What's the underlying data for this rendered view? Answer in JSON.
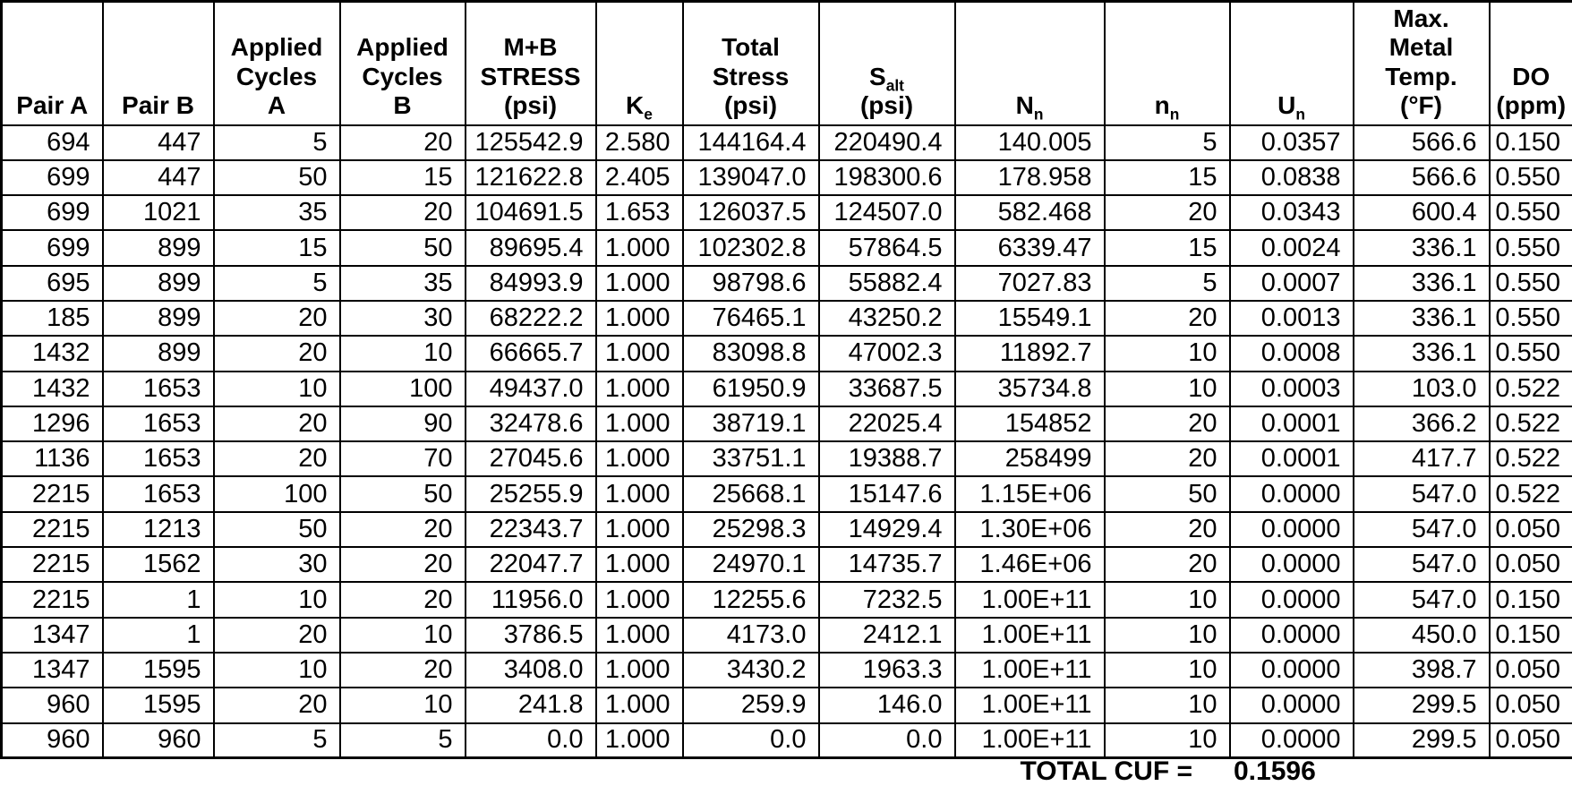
{
  "table": {
    "title": "fatigue-usage-table",
    "columns": [
      {
        "id": "pair-a",
        "label_lines": [
          [
            "Pair A"
          ]
        ]
      },
      {
        "id": "pair-b",
        "label_lines": [
          [
            "Pair B"
          ]
        ]
      },
      {
        "id": "applied-cycles-a",
        "label_lines": [
          [
            "Applied"
          ],
          [
            "Cycles"
          ],
          [
            "A"
          ]
        ]
      },
      {
        "id": "applied-cycles-b",
        "label_lines": [
          [
            "Applied"
          ],
          [
            "Cycles"
          ],
          [
            "B"
          ]
        ]
      },
      {
        "id": "mb-stress",
        "label_lines": [
          [
            "M+B"
          ],
          [
            "STRESS"
          ],
          [
            "(psi)"
          ]
        ]
      },
      {
        "id": "ke",
        "label_lines": [
          [
            {
              "t": "K"
            },
            {
              "t": "e",
              "sub": true
            }
          ]
        ]
      },
      {
        "id": "total-stress",
        "label_lines": [
          [
            "Total"
          ],
          [
            "Stress"
          ],
          [
            "(psi)"
          ]
        ]
      },
      {
        "id": "s-alt",
        "label_lines": [
          [
            {
              "t": "S"
            },
            {
              "t": "alt",
              "sub": true
            }
          ],
          [
            "(psi)"
          ]
        ]
      },
      {
        "id": "n-allowable",
        "label_lines": [
          [
            {
              "t": "N"
            },
            {
              "t": "n",
              "sub": true
            }
          ]
        ]
      },
      {
        "id": "n-applied",
        "label_lines": [
          [
            {
              "t": "n"
            },
            {
              "t": "n",
              "sub": true
            }
          ]
        ]
      },
      {
        "id": "u-n",
        "label_lines": [
          [
            {
              "t": "U"
            },
            {
              "t": "n",
              "sub": true
            }
          ]
        ]
      },
      {
        "id": "max-metal-temp",
        "label_lines": [
          [
            "Max."
          ],
          [
            "Metal"
          ],
          [
            "Temp."
          ],
          [
            "(°F)"
          ]
        ]
      },
      {
        "id": "do-ppm",
        "label_lines": [
          [
            "DO"
          ],
          [
            "(ppm)"
          ]
        ]
      }
    ],
    "rows": [
      [
        "694",
        "447",
        "5",
        "20",
        "125542.9",
        "2.580",
        "144164.4",
        "220490.4",
        "140.005",
        "5",
        "0.0357",
        "566.6",
        "0.150"
      ],
      [
        "699",
        "447",
        "50",
        "15",
        "121622.8",
        "2.405",
        "139047.0",
        "198300.6",
        "178.958",
        "15",
        "0.0838",
        "566.6",
        "0.550"
      ],
      [
        "699",
        "1021",
        "35",
        "20",
        "104691.5",
        "1.653",
        "126037.5",
        "124507.0",
        "582.468",
        "20",
        "0.0343",
        "600.4",
        "0.550"
      ],
      [
        "699",
        "899",
        "15",
        "50",
        "89695.4",
        "1.000",
        "102302.8",
        "57864.5",
        "6339.47",
        "15",
        "0.0024",
        "336.1",
        "0.550"
      ],
      [
        "695",
        "899",
        "5",
        "35",
        "84993.9",
        "1.000",
        "98798.6",
        "55882.4",
        "7027.83",
        "5",
        "0.0007",
        "336.1",
        "0.550"
      ],
      [
        "185",
        "899",
        "20",
        "30",
        "68222.2",
        "1.000",
        "76465.1",
        "43250.2",
        "15549.1",
        "20",
        "0.0013",
        "336.1",
        "0.550"
      ],
      [
        "1432",
        "899",
        "20",
        "10",
        "66665.7",
        "1.000",
        "83098.8",
        "47002.3",
        "11892.7",
        "10",
        "0.0008",
        "336.1",
        "0.550"
      ],
      [
        "1432",
        "1653",
        "10",
        "100",
        "49437.0",
        "1.000",
        "61950.9",
        "33687.5",
        "35734.8",
        "10",
        "0.0003",
        "103.0",
        "0.522"
      ],
      [
        "1296",
        "1653",
        "20",
        "90",
        "32478.6",
        "1.000",
        "38719.1",
        "22025.4",
        "154852",
        "20",
        "0.0001",
        "366.2",
        "0.522"
      ],
      [
        "1136",
        "1653",
        "20",
        "70",
        "27045.6",
        "1.000",
        "33751.1",
        "19388.7",
        "258499",
        "20",
        "0.0001",
        "417.7",
        "0.522"
      ],
      [
        "2215",
        "1653",
        "100",
        "50",
        "25255.9",
        "1.000",
        "25668.1",
        "15147.6",
        "1.15E+06",
        "50",
        "0.0000",
        "547.0",
        "0.522"
      ],
      [
        "2215",
        "1213",
        "50",
        "20",
        "22343.7",
        "1.000",
        "25298.3",
        "14929.4",
        "1.30E+06",
        "20",
        "0.0000",
        "547.0",
        "0.050"
      ],
      [
        "2215",
        "1562",
        "30",
        "20",
        "22047.7",
        "1.000",
        "24970.1",
        "14735.7",
        "1.46E+06",
        "20",
        "0.0000",
        "547.0",
        "0.050"
      ],
      [
        "2215",
        "1",
        "10",
        "20",
        "11956.0",
        "1.000",
        "12255.6",
        "7232.5",
        "1.00E+11",
        "10",
        "0.0000",
        "547.0",
        "0.150"
      ],
      [
        "1347",
        "1",
        "20",
        "10",
        "3786.5",
        "1.000",
        "4173.0",
        "2412.1",
        "1.00E+11",
        "10",
        "0.0000",
        "450.0",
        "0.150"
      ],
      [
        "1347",
        "1595",
        "10",
        "20",
        "3408.0",
        "1.000",
        "3430.2",
        "1963.3",
        "1.00E+11",
        "10",
        "0.0000",
        "398.7",
        "0.050"
      ],
      [
        "960",
        "1595",
        "20",
        "10",
        "241.8",
        "1.000",
        "259.9",
        "146.0",
        "1.00E+11",
        "10",
        "0.0000",
        "299.5",
        "0.050"
      ],
      [
        "960",
        "960",
        "5",
        "5",
        "0.0",
        "1.000",
        "0.0",
        "0.0",
        "1.00E+11",
        "10",
        "0.0000",
        "299.5",
        "0.050"
      ]
    ],
    "footer": {
      "label": "TOTAL CUF =",
      "value": "0.1596"
    }
  }
}
